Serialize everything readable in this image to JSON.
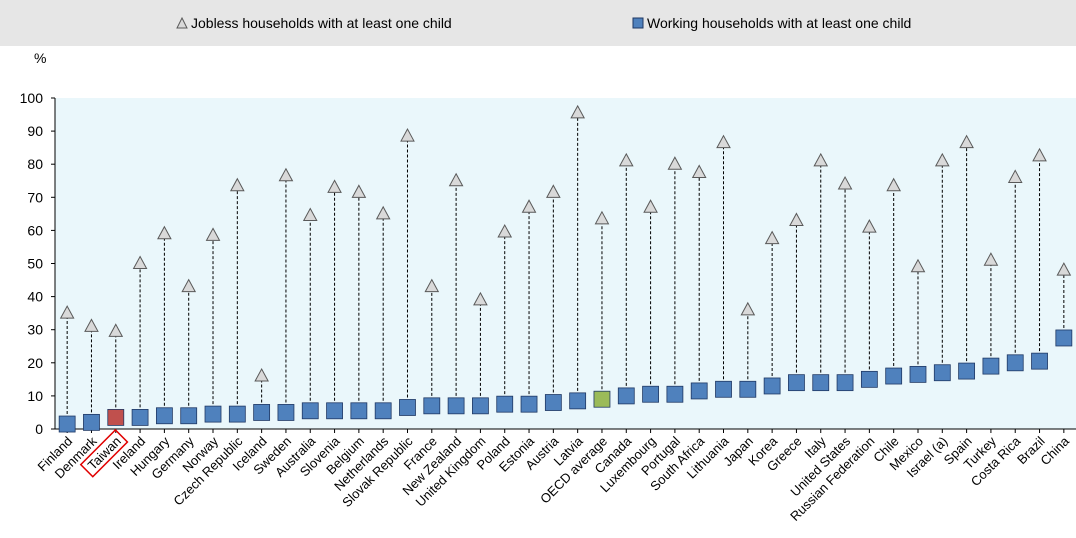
{
  "legend": {
    "jobless": "Jobless households with at least one child",
    "working": "Working households with at least one child"
  },
  "colors": {
    "working": "#4f81bd",
    "highlight": "#c0504d",
    "average": "#9bbb59",
    "jobless_marker": "#d9d9d9",
    "plot_bg": "#eaf7fb"
  },
  "chart_data": {
    "type": "scatter",
    "unit_label": "%",
    "ylim": [
      0,
      100
    ],
    "yticks": [
      0,
      10,
      20,
      30,
      40,
      50,
      60,
      70,
      80,
      90,
      100
    ],
    "highlighted_category": "Taiwan",
    "average_category": "OECD average",
    "categories": [
      "Finland",
      "Denmark",
      "Taiwan",
      "Ireland",
      "Hungary",
      "Germany",
      "Norway",
      "Czech Republic",
      "Iceland",
      "Sweden",
      "Australia",
      "Slovenia",
      "Belgium",
      "Netherlands",
      "Slovak Republic",
      "France",
      "New Zealand",
      "United Kingdom",
      "Poland",
      "Estonia",
      "Austria",
      "Latvia",
      "OECD average",
      "Canada",
      "Luxembourg",
      "Portugal",
      "South Africa",
      "Lithuania",
      "Japan",
      "Korea",
      "Greece",
      "Italy",
      "United States",
      "Russian Federation",
      "Chile",
      "Mexico",
      "Israel (a)",
      "Spain",
      "Turkey",
      "Costa Rica",
      "Brazil",
      "China"
    ],
    "series": [
      {
        "name": "Jobless households with at least one child",
        "values": [
          35,
          31,
          29.5,
          50,
          59,
          43,
          58.5,
          73.5,
          16,
          76.5,
          64.5,
          73,
          71.5,
          65,
          88.5,
          43,
          75,
          39,
          59.5,
          67,
          71.5,
          95.5,
          63.5,
          81,
          67,
          80,
          77.5,
          86.5,
          36,
          57.5,
          63,
          81,
          74,
          61,
          73.5,
          49,
          81,
          86.5,
          51,
          76,
          82.5,
          48
        ]
      },
      {
        "name": "Working households with at least one child",
        "values": [
          1.5,
          2,
          3.5,
          3.5,
          4,
          4,
          4.5,
          4.5,
          5,
          5,
          5.5,
          5.5,
          5.5,
          5.5,
          6.5,
          7,
          7,
          7,
          7.5,
          7.5,
          8,
          8.5,
          9,
          10,
          10.5,
          10.5,
          11.5,
          12,
          12,
          13,
          14,
          14,
          14,
          15,
          16,
          16.5,
          17,
          17.5,
          19,
          20,
          20.5,
          27.5
        ]
      }
    ]
  }
}
